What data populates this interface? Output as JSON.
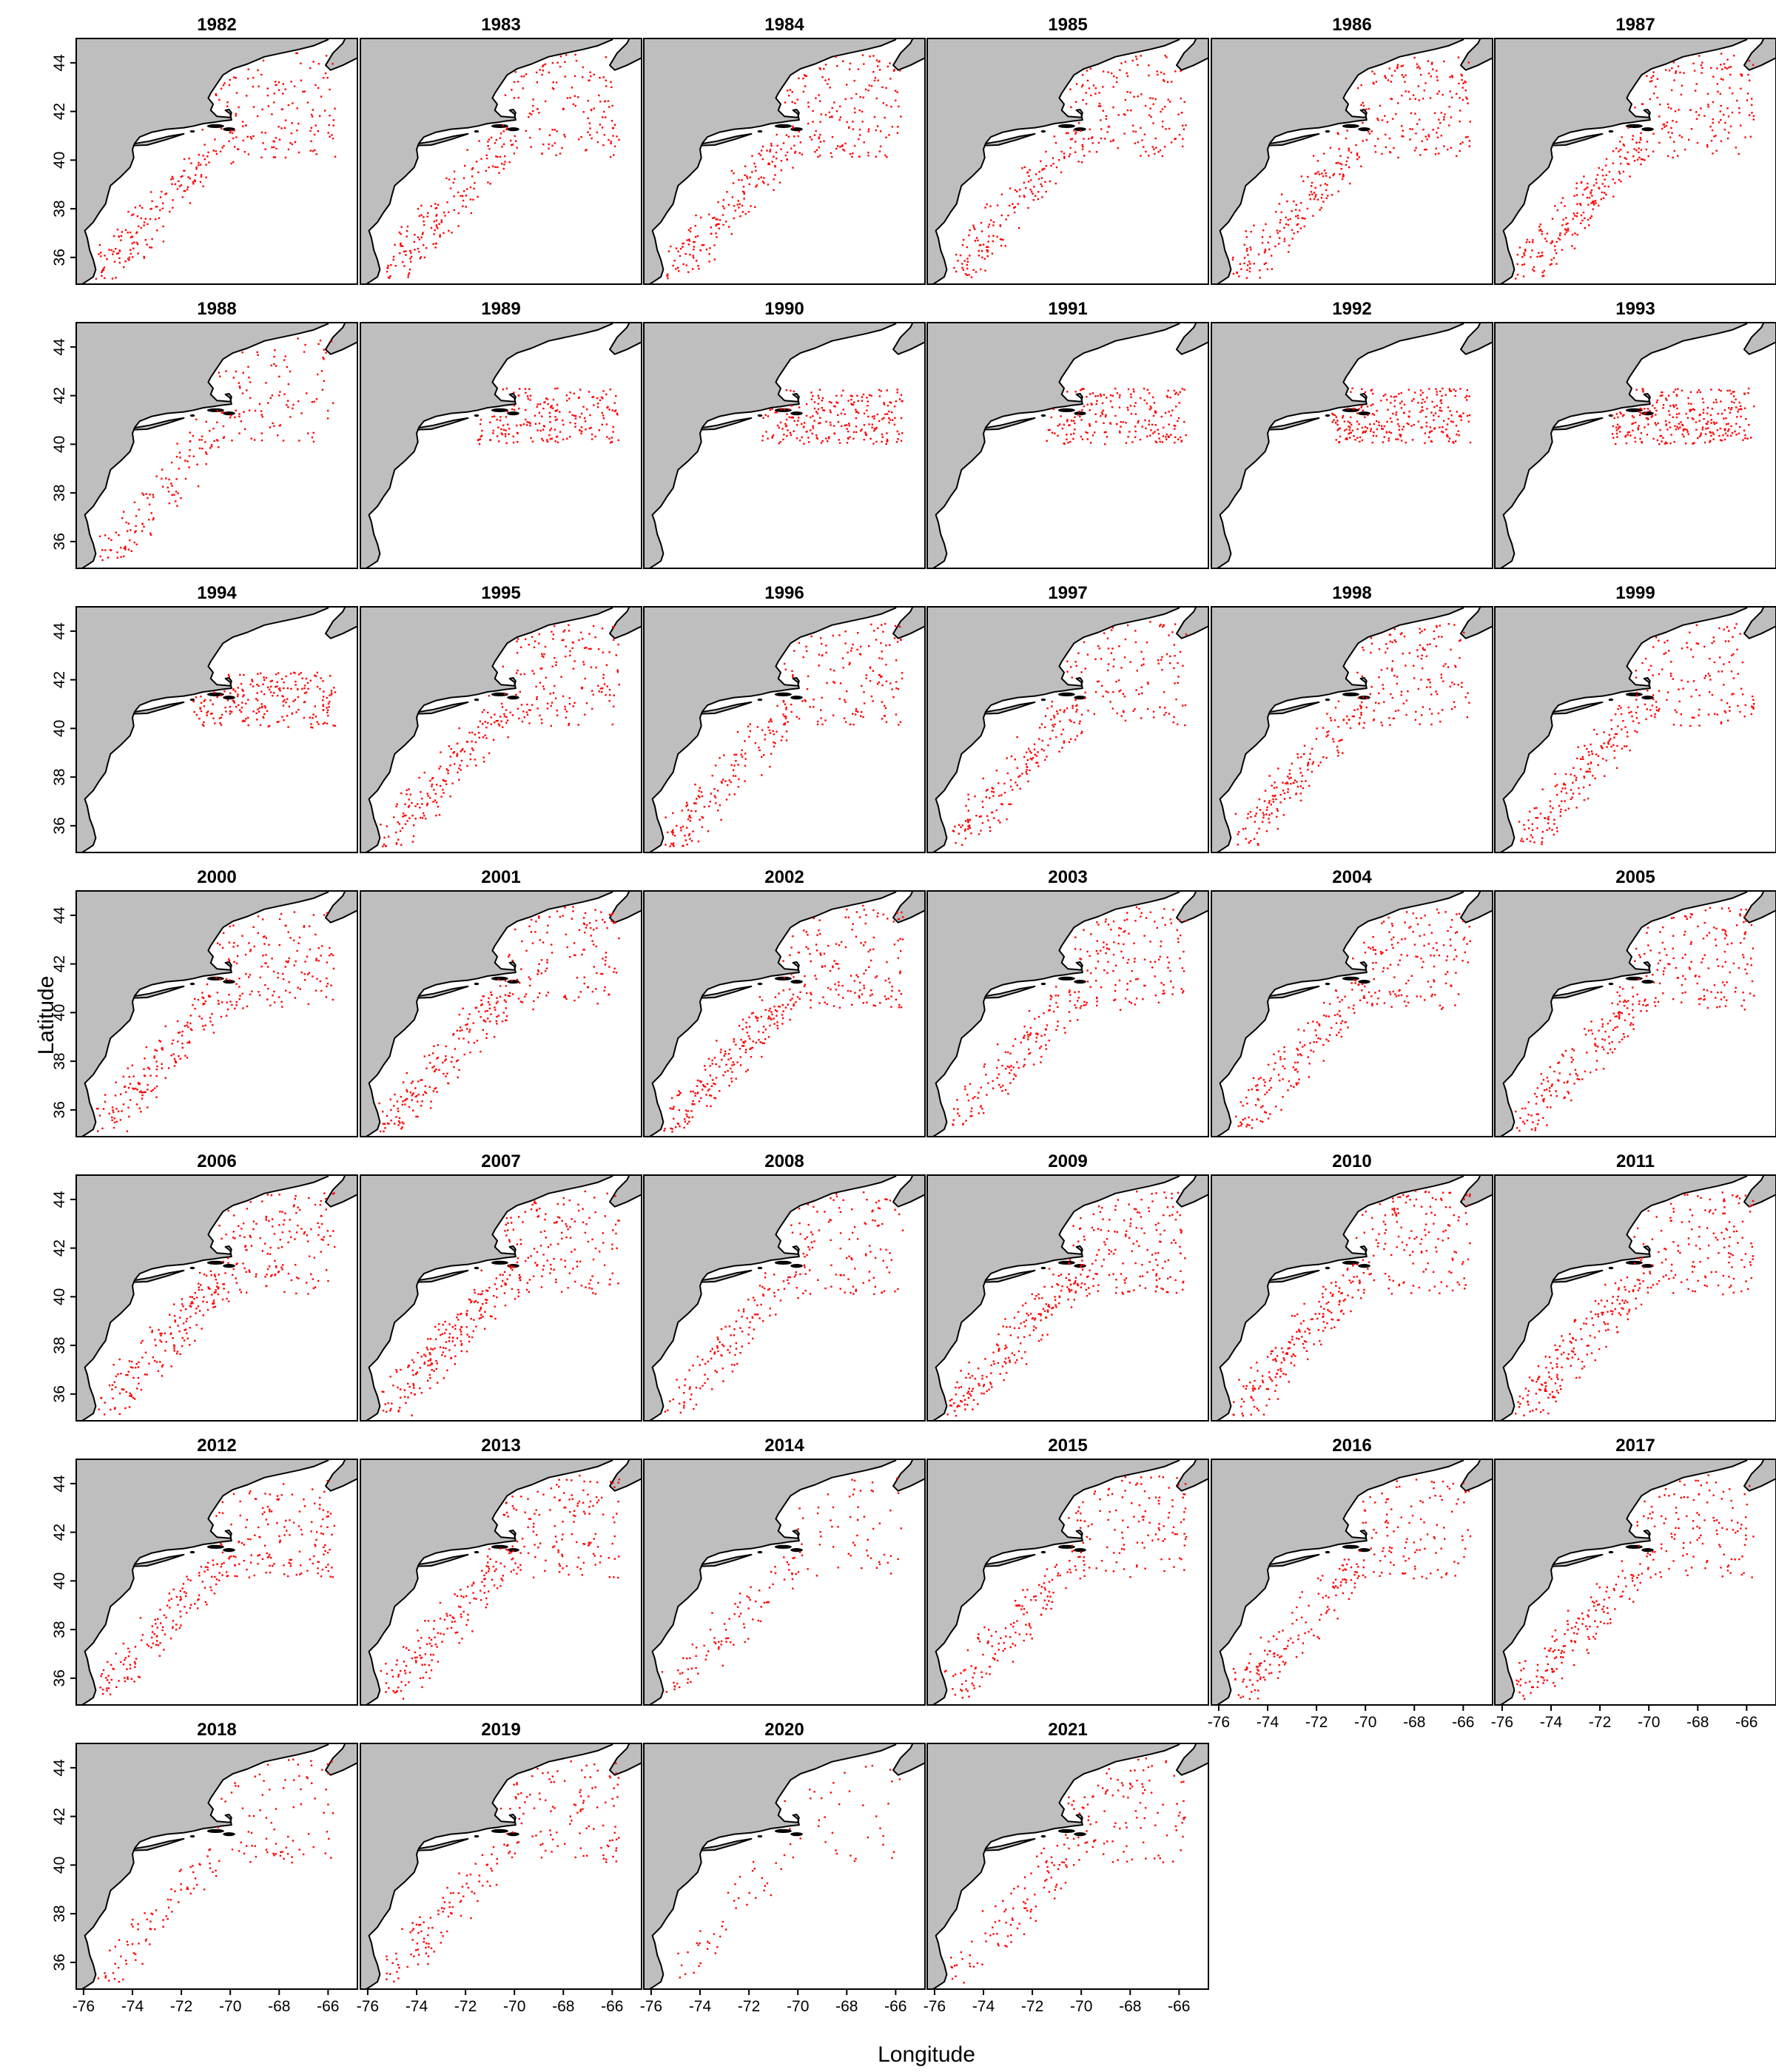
{
  "chart_data": {
    "type": "scatter",
    "description": "small multiples",
    "panel_years": [
      "1982",
      "1983",
      "1984",
      "1985",
      "1986",
      "1987",
      "1988",
      "1989",
      "1990",
      "1991",
      "1992",
      "1993",
      "1994",
      "1995",
      "1996",
      "1997",
      "1998",
      "1999",
      "2000",
      "2001",
      "2002",
      "2003",
      "2004",
      "2005",
      "2006",
      "2007",
      "2008",
      "2009",
      "2010",
      "2011",
      "2012",
      "2013",
      "2014",
      "2015",
      "2016",
      "2017",
      "2018",
      "2019",
      "2020",
      "2021"
    ],
    "xlabel": "Longitude",
    "ylabel": "Latitude",
    "xlim": [
      -76.3,
      -64.8
    ],
    "ylim": [
      34.9,
      45.0
    ],
    "x_ticks": [
      "-76",
      "-74",
      "-72",
      "-70",
      "-68",
      "-66"
    ],
    "y_ticks": [
      "36",
      "38",
      "40",
      "42",
      "44"
    ],
    "point_color": "#ff0000",
    "land_color": "#bebebe",
    "point_counts": [
      300,
      300,
      330,
      300,
      330,
      350,
      220,
      200,
      230,
      200,
      250,
      270,
      220,
      320,
      290,
      280,
      300,
      300,
      300,
      310,
      350,
      280,
      300,
      320,
      330,
      350,
      240,
      360,
      330,
      330,
      300,
      300,
      150,
      260,
      260,
      280,
      160,
      220,
      80,
      210
    ]
  }
}
